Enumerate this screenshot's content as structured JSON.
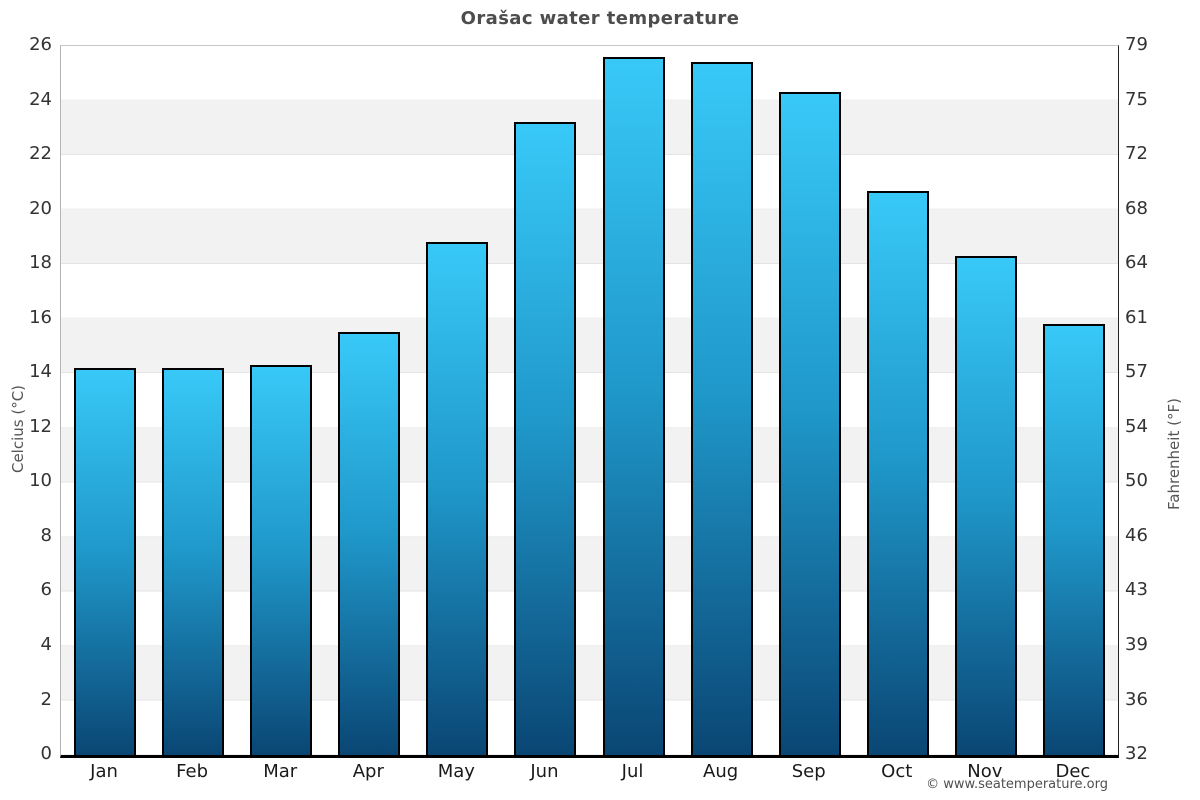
{
  "title": "Orašac water temperature",
  "attribution": "© www.seatemperature.org",
  "chart_data": {
    "type": "bar",
    "title": "Orašac water temperature",
    "categories": [
      "Jan",
      "Feb",
      "Mar",
      "Apr",
      "May",
      "Jun",
      "Jul",
      "Aug",
      "Sep",
      "Oct",
      "Nov",
      "Dec"
    ],
    "values": [
      14.2,
      14.2,
      14.3,
      15.5,
      18.8,
      23.2,
      25.6,
      25.4,
      24.3,
      20.7,
      18.3,
      15.8
    ],
    "values_unit": "°C",
    "ylabel_left": "Celcius (°C)",
    "ylabel_right": "Fahrenheit (°F)",
    "ylim_c": [
      0,
      26
    ],
    "yticks_celsius": [
      0,
      2,
      4,
      6,
      8,
      10,
      12,
      14,
      16,
      18,
      20,
      22,
      24,
      26
    ],
    "yticks_fahrenheit": [
      32,
      36,
      39,
      43,
      46,
      50,
      54,
      57,
      61,
      64,
      68,
      72,
      75,
      79
    ],
    "grid": "horizontal-bands-every-2C",
    "legend": "none",
    "colors": {
      "bar_gradient_top": "#38c9f8",
      "bar_gradient_bottom": "#0a4674",
      "bar_border": "#010101",
      "band": "#f2f2f2",
      "title_text": "#4d4d4d",
      "tick_text": "#333333"
    }
  }
}
